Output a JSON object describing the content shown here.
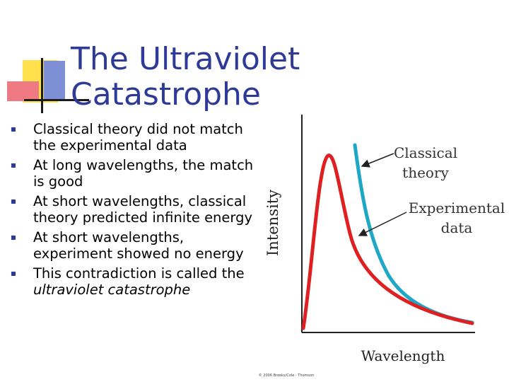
{
  "title": {
    "line1": "The Ultraviolet",
    "line2": "Catastrophe"
  },
  "bullets": [
    {
      "text": "Classical theory did not match the experimental data"
    },
    {
      "text": "At long wavelengths, the match is good"
    },
    {
      "text": "At short wavelengths, classical theory predicted infinite energy"
    },
    {
      "text": "At short wavelengths, experiment showed no energy"
    },
    {
      "text": "This contradiction is called the ",
      "emphasis": "ultraviolet catastrophe"
    }
  ],
  "figure": {
    "ylabel": "Intensity",
    "xlabel": "Wavelength",
    "label_classical_line1": "Classical",
    "label_classical_line2": "theory",
    "label_experimental_line1": "Experimental",
    "label_experimental_line2": "data",
    "copyright": "© 2006 Brooks/Cole - Thomson",
    "colors": {
      "classical": "#1fa7c6",
      "experimental": "#e02020",
      "axis": "#222222"
    }
  }
}
